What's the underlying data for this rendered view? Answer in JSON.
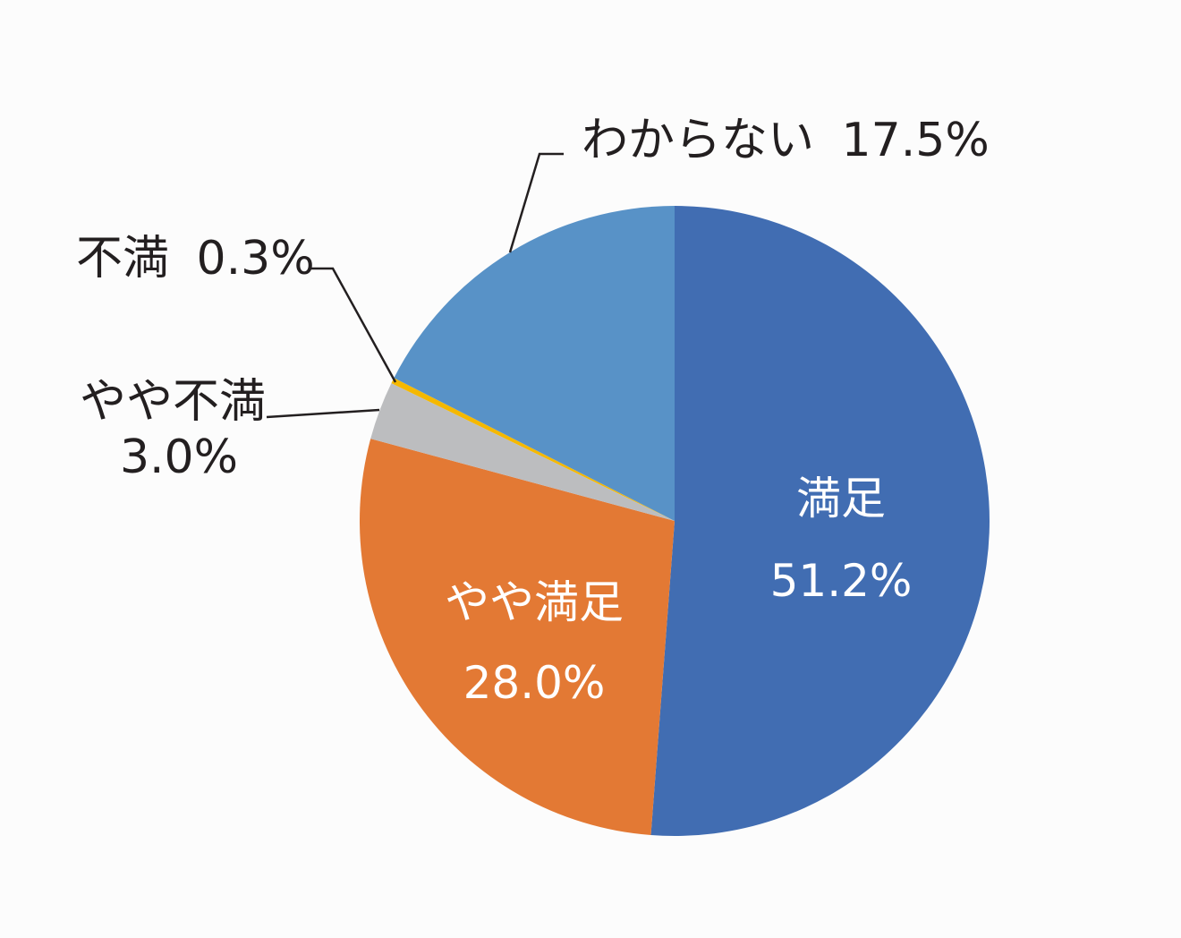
{
  "chart_data": {
    "type": "pie",
    "start_angle_deg": 0,
    "direction": "clockwise",
    "slices": [
      {
        "label": "満足",
        "value": 51.2,
        "value_label": "51.2%",
        "color": "#416db2"
      },
      {
        "label": "やや満足",
        "value": 28.0,
        "value_label": "28.0%",
        "color": "#e37934"
      },
      {
        "label": "やや不満",
        "value": 3.0,
        "value_label": "3.0%",
        "color": "#bcbdbf"
      },
      {
        "label": "不満",
        "value": 0.3,
        "value_label": "0.3%",
        "color": "#f5b800"
      },
      {
        "label": "わからない",
        "value": 17.5,
        "value_label": "17.5%",
        "color": "#5892c7"
      }
    ]
  }
}
